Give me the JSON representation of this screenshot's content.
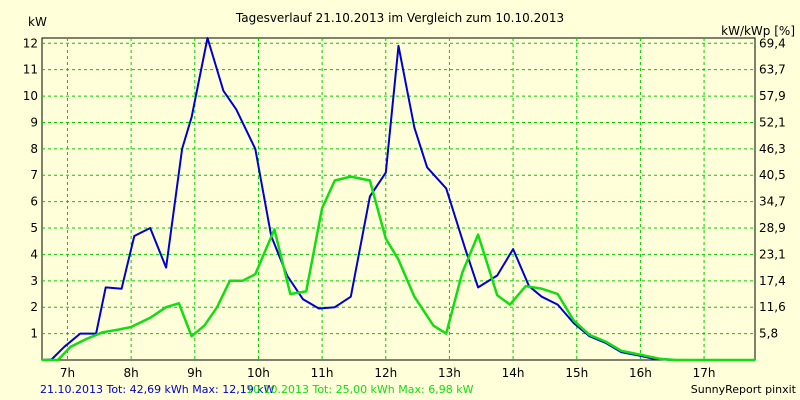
{
  "chart_data": {
    "type": "line",
    "title": "Tagesverlauf 21.10.2013 im Vergleich zum 10.10.2013",
    "left_axis_unit": "kW",
    "right_axis_unit": "kW/kWp [%]",
    "x_ticks": [
      "7h",
      "8h",
      "9h",
      "10h",
      "11h",
      "12h",
      "13h",
      "14h",
      "15h",
      "16h",
      "17h"
    ],
    "xlim": [
      6.6,
      17.8
    ],
    "ylim": [
      0,
      12.2
    ],
    "y_ticks": [
      1,
      2,
      3,
      4,
      5,
      6,
      7,
      8,
      9,
      10,
      11,
      12
    ],
    "right_ticks": [
      "5,8",
      "11,6",
      "17,4",
      "23,1",
      "28,9",
      "34,7",
      "40,5",
      "46,3",
      "52,1",
      "57,9",
      "63,7",
      "69,4"
    ],
    "grid": true,
    "series": [
      {
        "name": "21.10.2013",
        "color": "#0000d0",
        "x": [
          6.6,
          6.75,
          6.95,
          7.2,
          7.45,
          7.6,
          7.85,
          8.05,
          8.3,
          8.55,
          8.8,
          8.95,
          9.2,
          9.45,
          9.65,
          9.95,
          10.2,
          10.45,
          10.7,
          10.95,
          11.2,
          11.45,
          11.75,
          12.0,
          12.2,
          12.45,
          12.65,
          12.95,
          13.25,
          13.45,
          13.75,
          14.0,
          14.25,
          14.45,
          14.7,
          14.95,
          15.2,
          15.45,
          15.7,
          15.95,
          16.2,
          16.5,
          16.8,
          17.0,
          17.3,
          17.6,
          17.8
        ],
        "values": [
          0.0,
          0.02,
          0.5,
          1.0,
          1.0,
          2.75,
          2.7,
          4.7,
          5.0,
          3.5,
          8.0,
          9.2,
          12.2,
          10.2,
          9.5,
          8.0,
          4.7,
          3.2,
          2.3,
          1.95,
          2.0,
          2.4,
          6.2,
          7.1,
          11.9,
          8.8,
          7.3,
          6.5,
          4.2,
          2.75,
          3.2,
          4.2,
          2.8,
          2.4,
          2.1,
          1.4,
          0.9,
          0.65,
          0.3,
          0.18,
          0.05,
          0.0,
          0.0,
          0.0,
          0.0,
          0.0,
          0.0
        ]
      },
      {
        "name": "10.10.2013",
        "color": "#11dd11",
        "x": [
          6.6,
          6.85,
          7.05,
          7.3,
          7.55,
          7.8,
          8.0,
          8.3,
          8.55,
          8.75,
          8.95,
          9.15,
          9.35,
          9.55,
          9.75,
          9.95,
          10.25,
          10.5,
          10.75,
          11.0,
          11.2,
          11.45,
          11.75,
          12.0,
          12.2,
          12.45,
          12.75,
          12.95,
          13.2,
          13.45,
          13.75,
          13.95,
          14.2,
          14.45,
          14.7,
          14.95,
          15.2,
          15.45,
          15.7,
          16.0,
          16.3,
          16.55,
          16.8,
          17.0,
          17.3,
          17.6,
          17.8
        ],
        "values": [
          0.0,
          0.0,
          0.5,
          0.8,
          1.05,
          1.15,
          1.25,
          1.6,
          2.0,
          2.15,
          0.9,
          1.3,
          2.0,
          3.0,
          3.0,
          3.25,
          4.95,
          2.5,
          2.6,
          5.75,
          6.8,
          6.95,
          6.8,
          4.6,
          3.8,
          2.4,
          1.3,
          1.0,
          3.3,
          4.75,
          2.45,
          2.1,
          2.8,
          2.7,
          2.5,
          1.5,
          0.95,
          0.7,
          0.35,
          0.2,
          0.05,
          0.0,
          0.0,
          0.0,
          0.0,
          0.0,
          0.0
        ]
      }
    ]
  },
  "footer": {
    "summary1": "21.10.2013 Tot: 42,69 kWh Max: 12,19 kW",
    "summary2": "10.10.2013 Tot: 25,00 kWh Max: 6,98 kW",
    "credit": "SunnyReport pinxit"
  }
}
